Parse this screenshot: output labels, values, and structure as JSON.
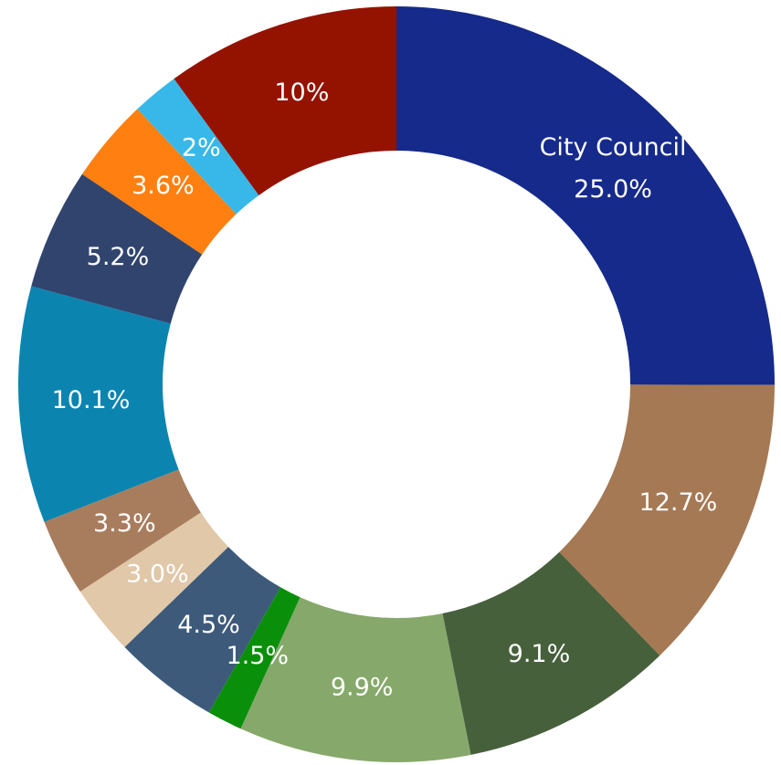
{
  "chart_data": {
    "type": "donut",
    "categories": [
      "City Council",
      null,
      null,
      null,
      null,
      null,
      null,
      null,
      null,
      null,
      null,
      null,
      null
    ],
    "values": [
      25.0,
      12.7,
      9.1,
      9.9,
      1.5,
      4.5,
      3.0,
      3.3,
      10.1,
      5.2,
      3.6,
      2,
      10
    ],
    "value_labels": [
      "25.0%",
      "12.7%",
      "9.1%",
      "9.9%",
      "1.5%",
      "4.5%",
      "3.0%",
      "3.3%",
      "10.1%",
      "5.2%",
      "3.6%",
      "2%",
      "10%"
    ],
    "colors": [
      "#152a8a",
      "#a57954",
      "#46603c",
      "#86a96b",
      "#0a8f0a",
      "#3d5a7a",
      "#e0c8a8",
      "#a87d5e",
      "#0c84b0",
      "#31446e",
      "#ff8010",
      "#38b8e8",
      "#941200"
    ]
  }
}
